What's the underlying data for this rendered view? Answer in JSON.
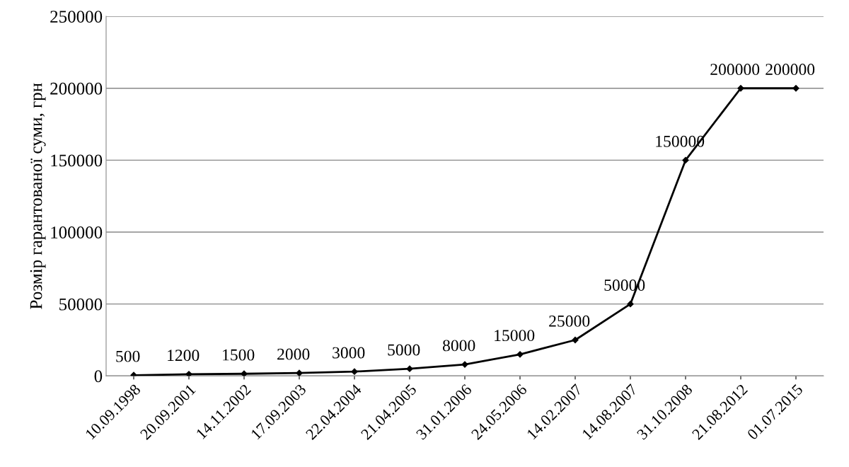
{
  "chart_data": {
    "type": "line",
    "ylabel": "Розмір гарантованої суми, грн",
    "categories": [
      "10.09.1998",
      "20.09.2001",
      "14.11.2002",
      "17.09.2003",
      "22.04.2004",
      "21.04.2005",
      "31.01.2006",
      "24.05.2006",
      "14.02.2007",
      "14.08.2007",
      "31.10.2008",
      "21.08.2012",
      "01.07.2015"
    ],
    "series": [
      {
        "color": "#000000",
        "values": [
          500,
          1200,
          1500,
          2000,
          3000,
          5000,
          8000,
          15000,
          25000,
          50000,
          150000,
          200000,
          200000
        ]
      }
    ],
    "ylim": [
      0,
      250000
    ],
    "yticks": [
      0,
      50000,
      100000,
      150000,
      200000,
      250000
    ],
    "grid": "y",
    "marker": "diamond",
    "line_style": "solid",
    "data_labels": true
  }
}
